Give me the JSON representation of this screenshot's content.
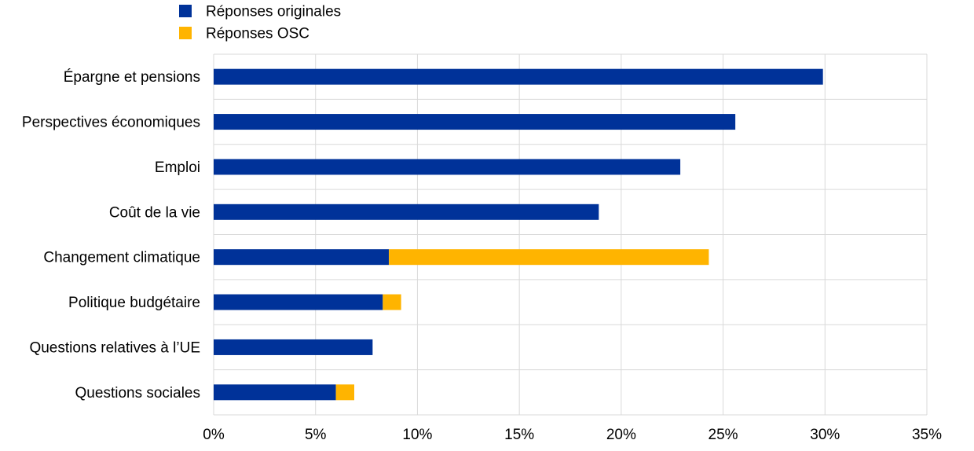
{
  "chart_data": {
    "type": "bar",
    "orientation": "horizontal",
    "stacked": true,
    "categories": [
      "Épargne et pensions",
      "Perspectives économiques",
      "Emploi",
      "Coût de la vie",
      "Changement climatique",
      "Politique budgétaire",
      "Questions relatives à l’UE",
      "Questions sociales"
    ],
    "series": [
      {
        "name": "Réponses originales",
        "color": "#003299",
        "values": [
          29.9,
          25.6,
          22.9,
          18.9,
          8.6,
          8.3,
          7.8,
          6.0
        ]
      },
      {
        "name": "Réponses OSC",
        "color": "#FFB400",
        "values": [
          0,
          0,
          0,
          0,
          15.7,
          0.9,
          0,
          0.9
        ]
      }
    ],
    "xlim": [
      0,
      35
    ],
    "x_ticks": [
      "0%",
      "5%",
      "10%",
      "15%",
      "20%",
      "25%",
      "30%",
      "35%"
    ],
    "grid": true,
    "legend_position": "top-left"
  }
}
